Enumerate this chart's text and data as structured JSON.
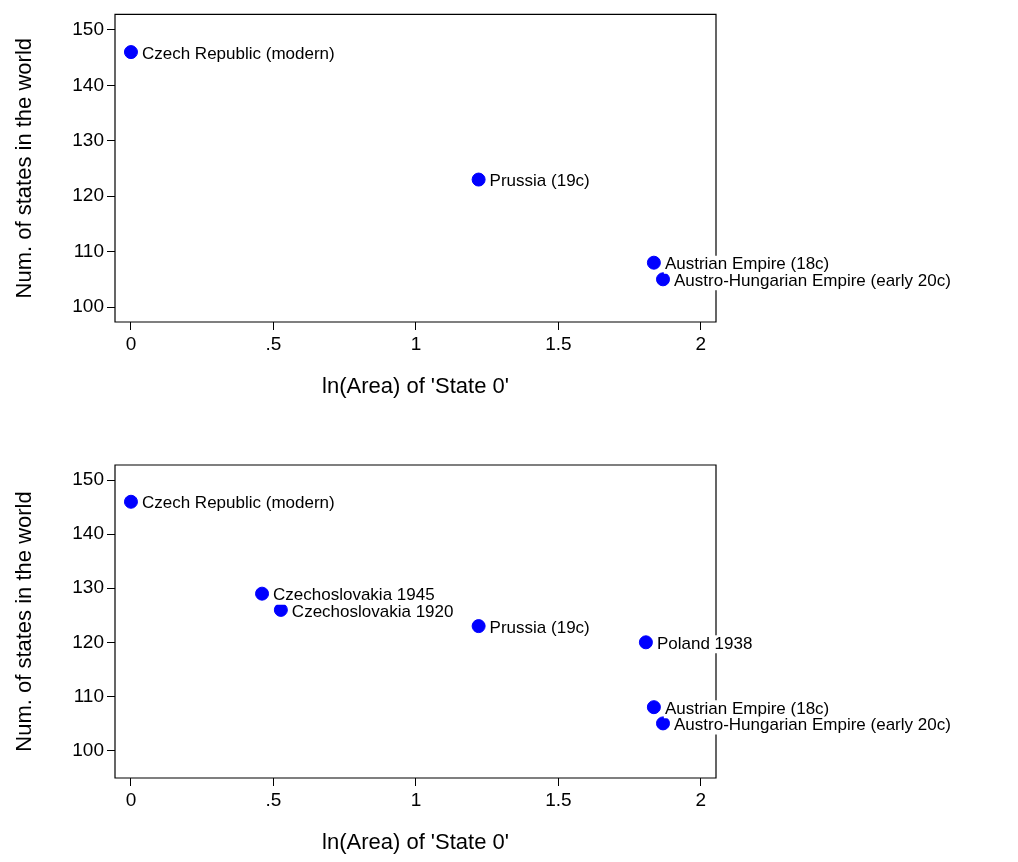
{
  "chart_data": [
    {
      "type": "scatter",
      "xlabel": "ln(Area) of 'State 0'",
      "ylabel": "Num. of states in the world",
      "marker": "circle",
      "color": "#0000ff",
      "x": [
        0,
        1.22,
        1.835,
        1.867
      ],
      "values": [
        146,
        123,
        108,
        105
      ],
      "xlim": [
        -0.056,
        2.053
      ],
      "ylim": [
        97.3,
        152.8
      ],
      "xticks": [
        0,
        {
          "value": 0.5,
          "label": ".5"
        },
        1,
        1.5,
        2
      ],
      "yticks": [
        100,
        110,
        120,
        130,
        140,
        150
      ],
      "annotations": [
        {
          "text": "Czech Republic (modern)",
          "x": 0,
          "y": 146
        },
        {
          "text": "Prussia (19c)",
          "x": 1.22,
          "y": 123
        },
        {
          "text": "Austrian Empire (18c)",
          "x": 1.835,
          "y": 108
        },
        {
          "text": "Austro-Hungarian Empire (early 20c)",
          "x": 1.867,
          "y": 105
        }
      ]
    },
    {
      "type": "scatter",
      "xlabel": "ln(Area) of 'State 0'",
      "ylabel": "Num. of states in the world",
      "marker": "circle",
      "color": "#0000ff",
      "x": [
        0,
        0.46,
        0.526,
        1.22,
        1.807,
        1.835,
        1.867
      ],
      "values": [
        146,
        129,
        126,
        123,
        120,
        108,
        105
      ],
      "xlim": [
        -0.056,
        2.053
      ],
      "ylim": [
        94.9,
        152.8
      ],
      "xticks": [
        0,
        {
          "value": 0.5,
          "label": ".5"
        },
        1,
        1.5,
        2
      ],
      "yticks": [
        100,
        110,
        120,
        130,
        140,
        150
      ],
      "annotations": [
        {
          "text": "Czech Republic (modern)",
          "x": 0,
          "y": 146
        },
        {
          "text": "Czechoslovakia 1945",
          "x": 0.46,
          "y": 129
        },
        {
          "text": "Czechoslovakia 1920",
          "x": 0.526,
          "y": 126
        },
        {
          "text": "Prussia (19c)",
          "x": 1.22,
          "y": 123
        },
        {
          "text": "Poland 1938",
          "x": 1.807,
          "y": 120
        },
        {
          "text": "Austrian Empire (18c)",
          "x": 1.835,
          "y": 108
        },
        {
          "text": "Austro-Hungarian Empire (early 20c)",
          "x": 1.867,
          "y": 105
        }
      ]
    }
  ]
}
